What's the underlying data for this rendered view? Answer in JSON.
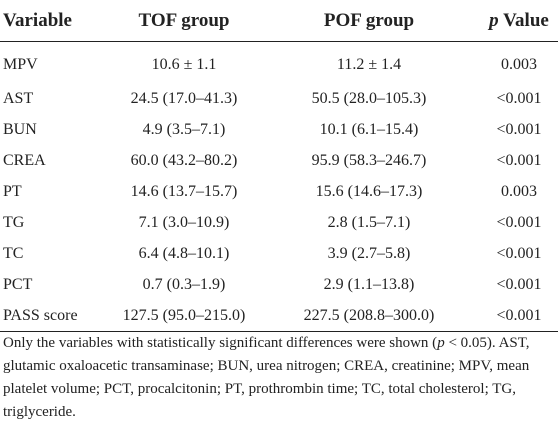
{
  "table": {
    "header": {
      "variable": "Variable",
      "tof": "TOF group",
      "pof": "POF group",
      "p_symbol": "p",
      "p_rest": "Value"
    },
    "rows": [
      [
        "MPV",
        "10.6 ± 1.1",
        "11.2 ± 1.4",
        "0.003"
      ],
      [
        "AST",
        "24.5 (17.0–41.3)",
        "50.5 (28.0–105.3)",
        "<0.001"
      ],
      [
        "BUN",
        "4.9 (3.5–7.1)",
        "10.1 (6.1–15.4)",
        "<0.001"
      ],
      [
        "CREA",
        "60.0 (43.2–80.2)",
        "95.9 (58.3–246.7)",
        "<0.001"
      ],
      [
        "PT",
        "14.6 (13.7–15.7)",
        "15.6 (14.6–17.3)",
        "0.003"
      ],
      [
        "TG",
        "7.1 (3.0–10.9)",
        "2.8 (1.5–7.1)",
        "<0.001"
      ],
      [
        "TC",
        "6.4 (4.8–10.1)",
        "3.9 (2.7–5.8)",
        "<0.001"
      ],
      [
        "PCT",
        "0.7 (0.3–1.9)",
        "2.9 (1.1–13.8)",
        "<0.001"
      ],
      [
        "PASS score",
        "127.5 (95.0–215.0)",
        "227.5 (208.8–300.0)",
        "<0.001"
      ]
    ]
  },
  "footnote": [
    "Only the variables with statistically significant differences were shown (",
    "p",
    " < 0.05). AST, glutamic oxaloacetic transaminase; BUN, urea nitrogen; CREA, creatinine; MPV, mean platelet volume; PCT, procalcitonin; PT, prothrombin time; TC, total cholesterol; TG, triglyceride."
  ]
}
